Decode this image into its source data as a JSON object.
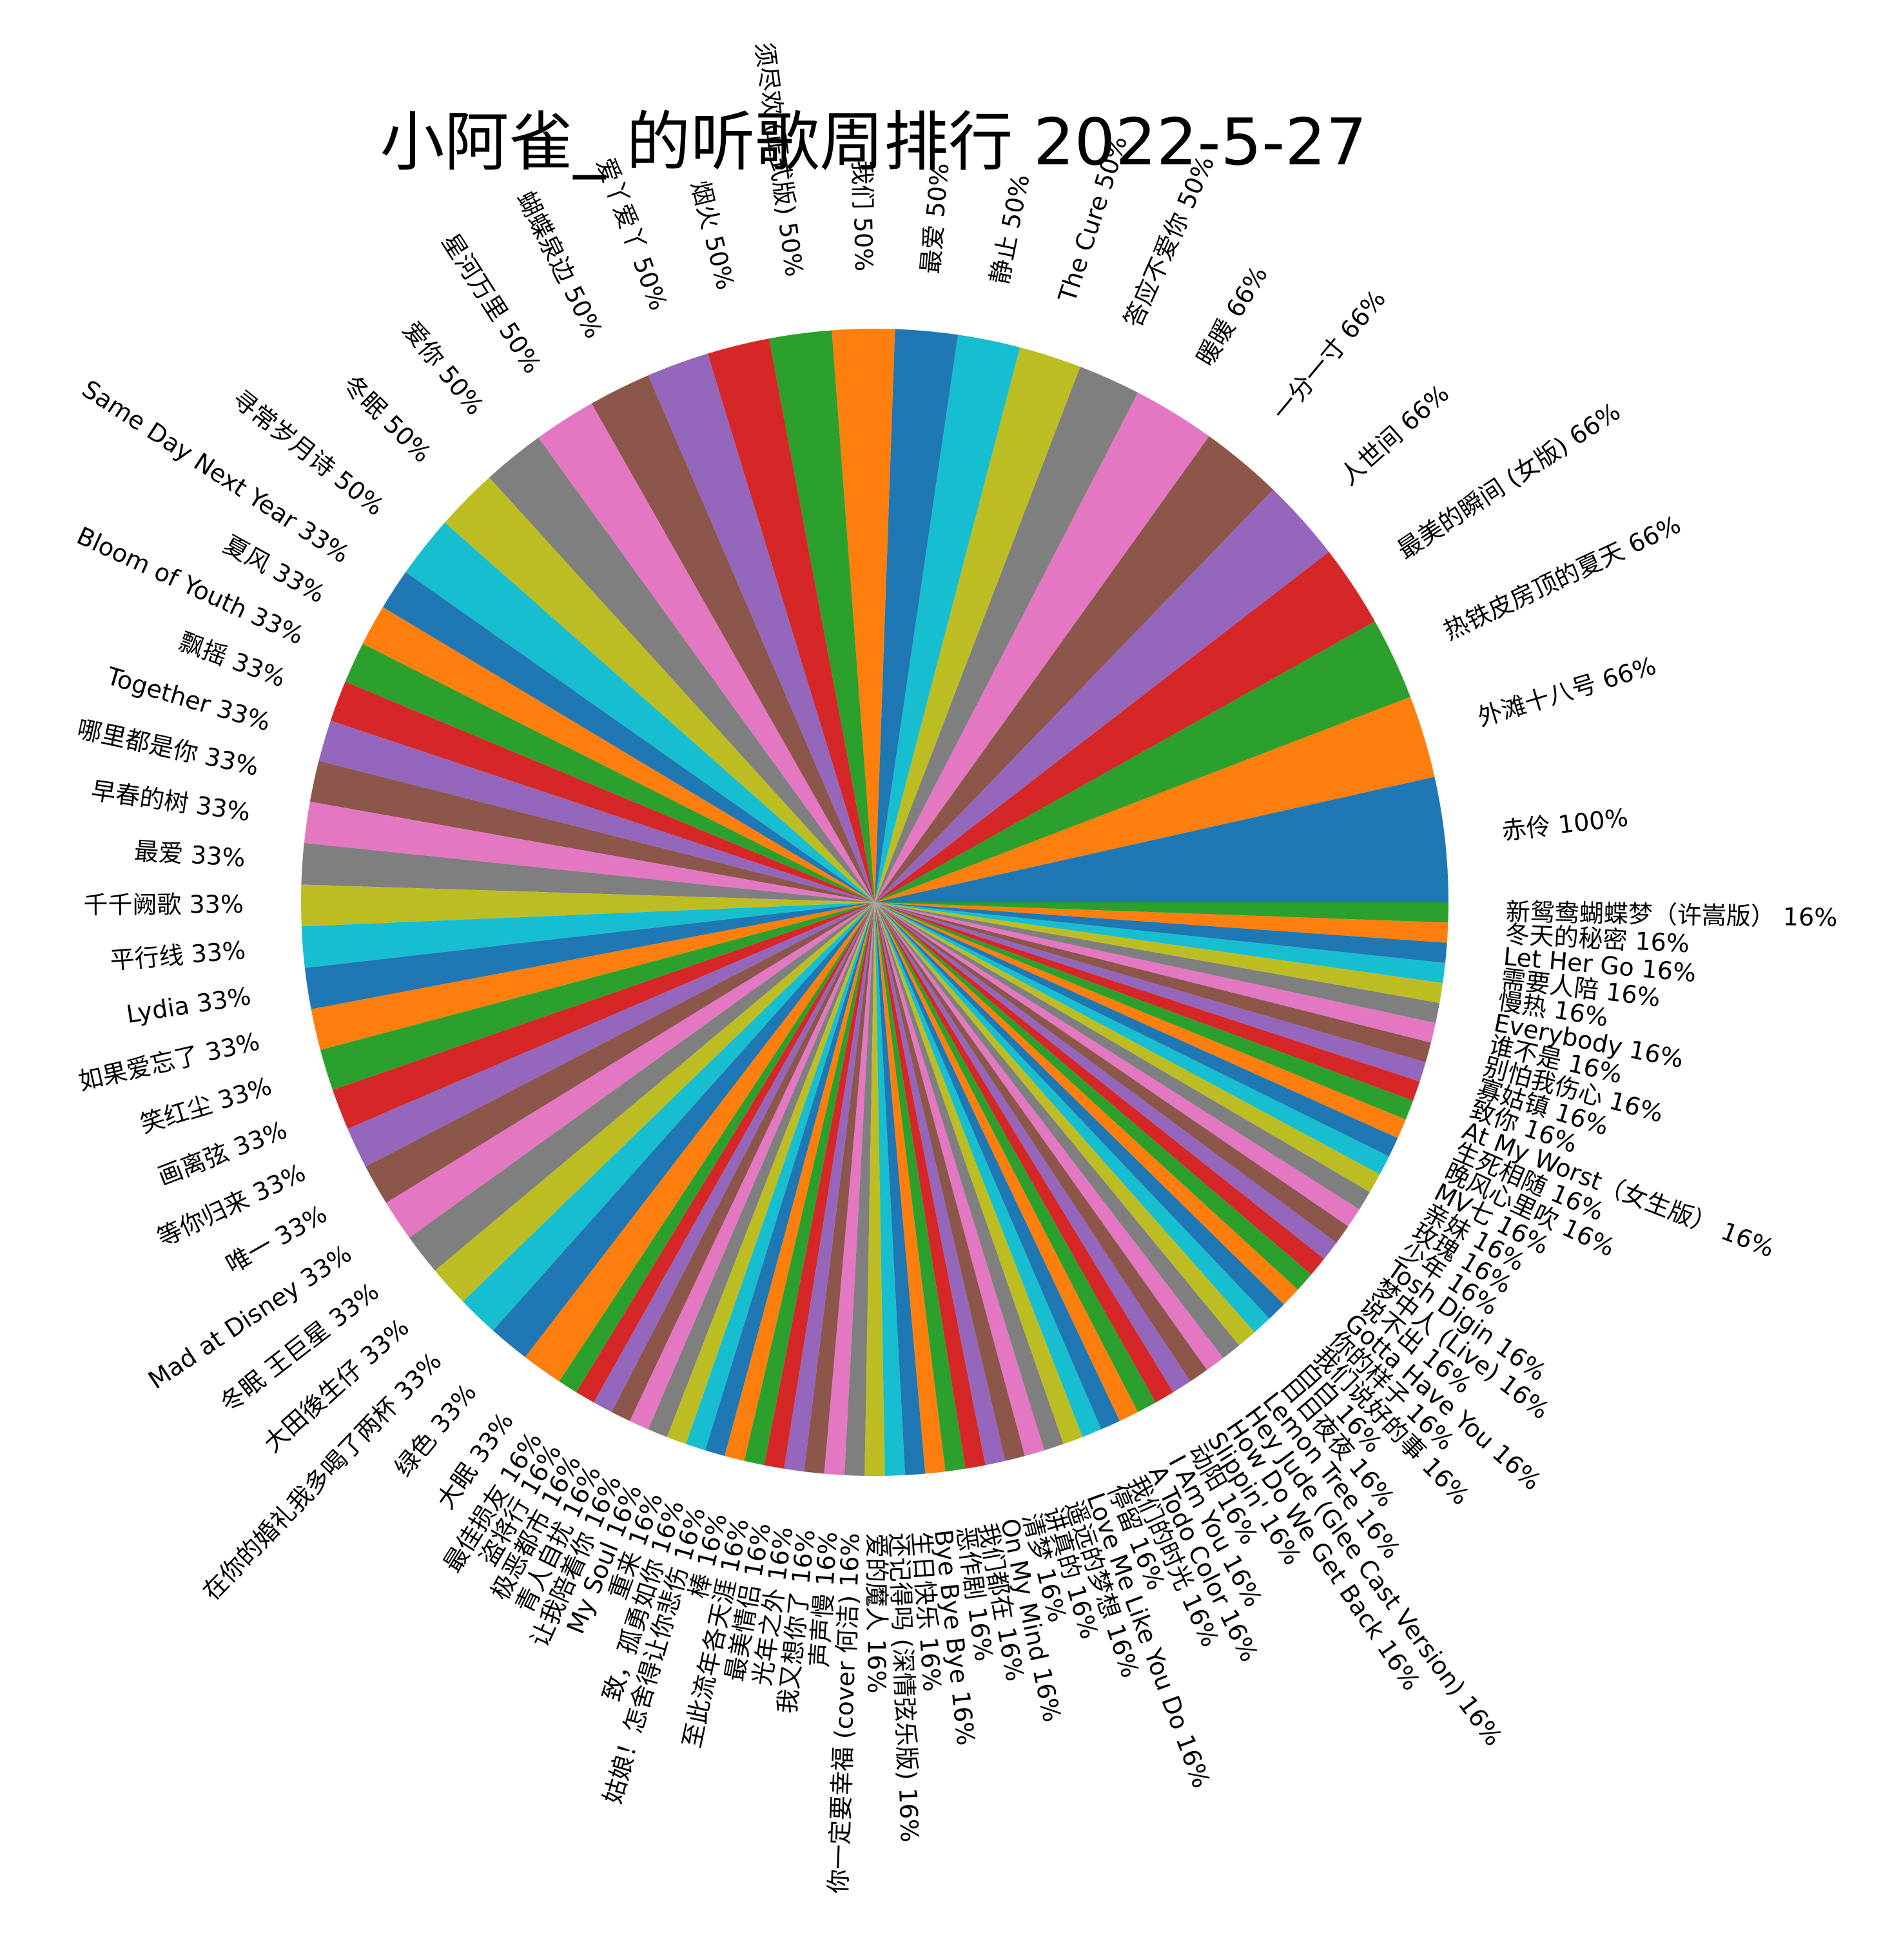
{
  "chart_data": {
    "type": "pie",
    "title": "小阿雀_ 的听歌周排行 2022-5-27",
    "slices": [
      {
        "label": "赤伶",
        "value": 100,
        "color": "#1f77b4"
      },
      {
        "label": "外滩十八号",
        "value": 66,
        "color": "#ff7f0e"
      },
      {
        "label": "热铁皮房顶的夏天",
        "value": 66,
        "color": "#2ca02c"
      },
      {
        "label": "最美的瞬间 (女版)",
        "value": 66,
        "color": "#d62728"
      },
      {
        "label": "人世间",
        "value": 66,
        "color": "#9467bd"
      },
      {
        "label": "一分一寸",
        "value": 66,
        "color": "#8c564b"
      },
      {
        "label": "暖暖",
        "value": 66,
        "color": "#e377c2"
      },
      {
        "label": "答应不爱你",
        "value": 50,
        "color": "#7f7f7f"
      },
      {
        "label": "The Cure",
        "value": 50,
        "color": "#bcbd22"
      },
      {
        "label": "静止",
        "value": 50,
        "color": "#17becf"
      },
      {
        "label": "最爱",
        "value": 50,
        "color": "#1f77b4"
      },
      {
        "label": "我们",
        "value": 50,
        "color": "#ff7f0e"
      },
      {
        "label": "须尽欢 (正式版)",
        "value": 50,
        "color": "#2ca02c"
      },
      {
        "label": "烟火",
        "value": 50,
        "color": "#d62728"
      },
      {
        "label": "爱丫爱丫",
        "value": 50,
        "color": "#9467bd"
      },
      {
        "label": "蝴蝶泉边",
        "value": 50,
        "color": "#8c564b"
      },
      {
        "label": "星河万里",
        "value": 50,
        "color": "#e377c2"
      },
      {
        "label": "爱你",
        "value": 50,
        "color": "#7f7f7f"
      },
      {
        "label": "冬眠",
        "value": 50,
        "color": "#bcbd22"
      },
      {
        "label": "寻常岁月诗",
        "value": 50,
        "color": "#17becf"
      },
      {
        "label": "Same Day Next Year",
        "value": 33,
        "color": "#1f77b4"
      },
      {
        "label": "夏风",
        "value": 33,
        "color": "#ff7f0e"
      },
      {
        "label": "Bloom of Youth",
        "value": 33,
        "color": "#2ca02c"
      },
      {
        "label": "飘摇",
        "value": 33,
        "color": "#d62728"
      },
      {
        "label": "Together",
        "value": 33,
        "color": "#9467bd"
      },
      {
        "label": "哪里都是你",
        "value": 33,
        "color": "#8c564b"
      },
      {
        "label": "早春的树",
        "value": 33,
        "color": "#e377c2"
      },
      {
        "label": "最爱",
        "value": 33,
        "color": "#7f7f7f"
      },
      {
        "label": "千千阙歌",
        "value": 33,
        "color": "#bcbd22"
      },
      {
        "label": "平行线",
        "value": 33,
        "color": "#17becf"
      },
      {
        "label": "Lydia",
        "value": 33,
        "color": "#1f77b4"
      },
      {
        "label": "如果爱忘了",
        "value": 33,
        "color": "#ff7f0e"
      },
      {
        "label": "笑红尘",
        "value": 33,
        "color": "#2ca02c"
      },
      {
        "label": "画离弦",
        "value": 33,
        "color": "#d62728"
      },
      {
        "label": "等你归来",
        "value": 33,
        "color": "#9467bd"
      },
      {
        "label": "唯一",
        "value": 33,
        "color": "#8c564b"
      },
      {
        "label": "Mad at Disney",
        "value": 33,
        "color": "#e377c2"
      },
      {
        "label": "冬眠 王巨星",
        "value": 33,
        "color": "#7f7f7f"
      },
      {
        "label": "大田後生仔",
        "value": 33,
        "color": "#bcbd22"
      },
      {
        "label": "在你的婚礼我多喝了两杯",
        "value": 33,
        "color": "#17becf"
      },
      {
        "label": "绿色",
        "value": 33,
        "color": "#1f77b4"
      },
      {
        "label": "大眠",
        "value": 33,
        "color": "#ff7f0e"
      },
      {
        "label": "最佳损友",
        "value": 16,
        "color": "#2ca02c"
      },
      {
        "label": "盗将行",
        "value": 16,
        "color": "#d62728"
      },
      {
        "label": "极恶都市",
        "value": 16,
        "color": "#9467bd"
      },
      {
        "label": "青人自扰",
        "value": 16,
        "color": "#8c564b"
      },
      {
        "label": "让我陪着你",
        "value": 16,
        "color": "#e377c2"
      },
      {
        "label": "My Soul",
        "value": 16,
        "color": "#7f7f7f"
      },
      {
        "label": "重来",
        "value": 16,
        "color": "#bcbd22"
      },
      {
        "label": "致，孤勇如你",
        "value": 16,
        "color": "#17becf"
      },
      {
        "label": "姑娘！怎舍得让你悲伤",
        "value": 16,
        "color": "#1f77b4"
      },
      {
        "label": "棒",
        "value": 16,
        "color": "#ff7f0e"
      },
      {
        "label": "至此流年各天涯",
        "value": 16,
        "color": "#2ca02c"
      },
      {
        "label": "最美情侣",
        "value": 16,
        "color": "#d62728"
      },
      {
        "label": "光年之外",
        "value": 16,
        "color": "#9467bd"
      },
      {
        "label": "我又想你了",
        "value": 16,
        "color": "#8c564b"
      },
      {
        "label": "声声慢",
        "value": 16,
        "color": "#e377c2"
      },
      {
        "label": "你一定要幸福 (cover 何洁)",
        "value": 16,
        "color": "#7f7f7f"
      },
      {
        "label": "爱的魔人",
        "value": 16,
        "color": "#bcbd22"
      },
      {
        "label": "还记得吗 (深情弦乐版)",
        "value": 16,
        "color": "#17becf"
      },
      {
        "label": "生日快乐",
        "value": 16,
        "color": "#1f77b4"
      },
      {
        "label": "Bye Bye Bye",
        "value": 16,
        "color": "#ff7f0e"
      },
      {
        "label": "恶作剧",
        "value": 16,
        "color": "#2ca02c"
      },
      {
        "label": "我们都在",
        "value": 16,
        "color": "#d62728"
      },
      {
        "label": "On My Mind",
        "value": 16,
        "color": "#9467bd"
      },
      {
        "label": "清梦",
        "value": 16,
        "color": "#8c564b"
      },
      {
        "label": "讲真的",
        "value": 16,
        "color": "#e377c2"
      },
      {
        "label": "遥远的梦想",
        "value": 16,
        "color": "#7f7f7f"
      },
      {
        "label": "Love Me Like You Do",
        "value": 16,
        "color": "#bcbd22"
      },
      {
        "label": "停留",
        "value": 16,
        "color": "#17becf"
      },
      {
        "label": "我们的时光",
        "value": 16,
        "color": "#1f77b4"
      },
      {
        "label": "A Todo Color",
        "value": 16,
        "color": "#ff7f0e"
      },
      {
        "label": "I Am You",
        "value": 16,
        "color": "#2ca02c"
      },
      {
        "label": "动阳",
        "value": 16,
        "color": "#d62728"
      },
      {
        "label": "Slippin'",
        "value": 16,
        "color": "#9467bd"
      },
      {
        "label": "How Do We Get Back",
        "value": 16,
        "color": "#8c564b"
      },
      {
        "label": "Hey Jude (Glee Cast Version)",
        "value": 16,
        "color": "#e377c2"
      },
      {
        "label": "Lemon Tree",
        "value": 16,
        "color": "#7f7f7f"
      },
      {
        "label": "日日夜夜",
        "value": 16,
        "color": "#bcbd22"
      },
      {
        "label": "白白",
        "value": 16,
        "color": "#17becf"
      },
      {
        "label": "我们说好的事",
        "value": 16,
        "color": "#1f77b4"
      },
      {
        "label": "你的样子",
        "value": 16,
        "color": "#ff7f0e"
      },
      {
        "label": "Gotta Have You",
        "value": 16,
        "color": "#2ca02c"
      },
      {
        "label": "说不出",
        "value": 16,
        "color": "#d62728"
      },
      {
        "label": "梦中人 (Live)",
        "value": 16,
        "color": "#9467bd"
      },
      {
        "label": "Tosh Digin",
        "value": 16,
        "color": "#8c564b"
      },
      {
        "label": "少年",
        "value": 16,
        "color": "#e377c2"
      },
      {
        "label": "玫瑰",
        "value": 16,
        "color": "#7f7f7f"
      },
      {
        "label": "亲妹",
        "value": 16,
        "color": "#bcbd22"
      },
      {
        "label": "MV七",
        "value": 16,
        "color": "#17becf"
      },
      {
        "label": "晚风心里吹",
        "value": 16,
        "color": "#1f77b4"
      },
      {
        "label": "生死相随",
        "value": 16,
        "color": "#ff7f0e"
      },
      {
        "label": "At My Worst（女生版）",
        "value": 16,
        "color": "#2ca02c"
      },
      {
        "label": "致你",
        "value": 16,
        "color": "#d62728"
      },
      {
        "label": "寡姑镇",
        "value": 16,
        "color": "#9467bd"
      },
      {
        "label": "别怕我伤心",
        "value": 16,
        "color": "#8c564b"
      },
      {
        "label": "谁不是",
        "value": 16,
        "color": "#e377c2"
      },
      {
        "label": "Everybody",
        "value": 16,
        "color": "#7f7f7f"
      },
      {
        "label": "慢热",
        "value": 16,
        "color": "#bcbd22"
      },
      {
        "label": "需要人陪",
        "value": 16,
        "color": "#17becf"
      },
      {
        "label": "Let Her Go",
        "value": 16,
        "color": "#1f77b4"
      },
      {
        "label": "冬天的秘密",
        "value": 16,
        "color": "#ff7f0e"
      },
      {
        "label": "新鸳鸯蝴蝶梦（许嵩版）",
        "value": 16,
        "color": "#2ca02c"
      }
    ]
  }
}
